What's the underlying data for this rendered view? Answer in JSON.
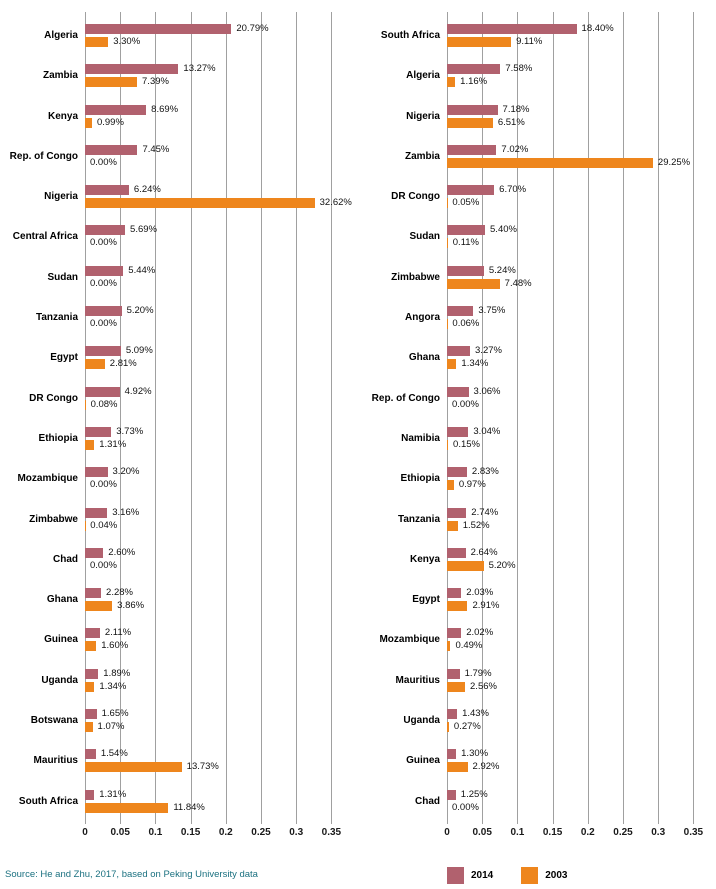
{
  "source_note": "Source: He and Zhu, 2017, based on Peking University data",
  "colors": {
    "series_2014": "#b1616e",
    "series_2003": "#ee861d",
    "gridline": "#a0a0a0",
    "source_text": "#1b7180"
  },
  "legend": {
    "items": [
      {
        "label": "2014",
        "color_key": "series_2014"
      },
      {
        "label": "2003",
        "color_key": "series_2003"
      }
    ]
  },
  "chart_data": [
    {
      "type": "bar",
      "orientation": "horizontal",
      "title": "",
      "xlabel": "",
      "ylabel": "",
      "xlim": [
        0,
        0.35
      ],
      "x_ticks": [
        "0",
        "0.05",
        "0.1",
        "0.15",
        "0.2",
        "0.25",
        "0.3",
        "0.35"
      ],
      "grid": true,
      "values_unit": "percent",
      "categories": [
        "Algeria",
        "Zambia",
        "Kenya",
        "Rep. of Congo",
        "Nigeria",
        "Central Africa",
        "Sudan",
        "Tanzania",
        "Egypt",
        "DR Congo",
        "Ethiopia",
        "Mozambique",
        "Zimbabwe",
        "Chad",
        "Ghana",
        "Guinea",
        "Uganda",
        "Botswana",
        "Mauritius",
        "South Africa"
      ],
      "series": [
        {
          "name": "2014",
          "values": [
            20.79,
            13.27,
            8.69,
            7.45,
            6.24,
            5.69,
            5.44,
            5.2,
            5.09,
            4.92,
            3.73,
            3.2,
            3.16,
            2.6,
            2.28,
            2.11,
            1.89,
            1.65,
            1.54,
            1.31
          ],
          "labels": [
            "20.79%",
            "13.27%",
            "8.69%",
            "7.45%",
            "6.24%",
            "5.69%",
            "5.44%",
            "5.20%",
            "5.09%",
            "4.92%",
            "3.73%",
            "3.20%",
            "3.16%",
            "2.60%",
            "2.28%",
            "2.11%",
            "1.89%",
            "1.65%",
            "1.54%",
            "1.31%"
          ]
        },
        {
          "name": "2003",
          "values": [
            3.3,
            7.39,
            0.99,
            0.0,
            32.62,
            0.0,
            0.0,
            0.0,
            2.81,
            0.08,
            1.31,
            0.0,
            0.04,
            0.0,
            3.86,
            1.6,
            1.34,
            1.07,
            13.73,
            11.84
          ],
          "labels": [
            "3.30%",
            "7.39%",
            "0.99%",
            "0.00%",
            "32.62%",
            "0.00%",
            "0.00%",
            "0.00%",
            "2.81%",
            "0.08%",
            "1.31%",
            "0.00%",
            "0.04%",
            "0.00%",
            "3.86%",
            "1.60%",
            "1.34%",
            "1.07%",
            "13.73%",
            "11.84%"
          ]
        }
      ]
    },
    {
      "type": "bar",
      "orientation": "horizontal",
      "title": "",
      "xlabel": "",
      "ylabel": "",
      "xlim": [
        0,
        0.35
      ],
      "x_ticks": [
        "0",
        "0.05",
        "0.1",
        "0.15",
        "0.2",
        "0.25",
        "0.3",
        "0.35"
      ],
      "grid": true,
      "values_unit": "percent",
      "categories": [
        "South Africa",
        "Algeria",
        "Nigeria",
        "Zambia",
        "DR Congo",
        "Sudan",
        "Zimbabwe",
        "Angora",
        "Ghana",
        "Rep. of Congo",
        "Namibia",
        "Ethiopia",
        "Tanzania",
        "Kenya",
        "Egypt",
        "Mozambique",
        "Mauritius",
        "Uganda",
        "Guinea",
        "Chad"
      ],
      "series": [
        {
          "name": "2014",
          "values": [
            18.4,
            7.58,
            7.18,
            7.02,
            6.7,
            5.4,
            5.24,
            3.75,
            3.27,
            3.06,
            3.04,
            2.83,
            2.74,
            2.64,
            2.03,
            2.02,
            1.79,
            1.43,
            1.3,
            1.25
          ],
          "labels": [
            "18.40%",
            "7.58%",
            "7.18%",
            "7.02%",
            "6.70%",
            "5.40%",
            "5.24%",
            "3.75%",
            "3.27%",
            "3.06%",
            "3.04%",
            "2.83%",
            "2.74%",
            "2.64%",
            "2.03%",
            "2.02%",
            "1.79%",
            "1.43%",
            "1.30%",
            "1.25%"
          ]
        },
        {
          "name": "2003",
          "values": [
            9.11,
            1.16,
            6.51,
            29.25,
            0.05,
            0.11,
            7.48,
            0.06,
            1.34,
            0.0,
            0.15,
            0.97,
            1.52,
            5.2,
            2.91,
            0.49,
            2.56,
            0.27,
            2.92,
            0.0
          ],
          "labels": [
            "9.11%",
            "1.16%",
            "6.51%",
            "29.25%",
            "0.05%",
            "0.11%",
            "7.48%",
            "0.06%",
            "1.34%",
            "0.00%",
            "0.15%",
            "0.97%",
            "1.52%",
            "5.20%",
            "2.91%",
            "0.49%",
            "2.56%",
            "0.27%",
            "2.92%",
            "0.00%"
          ]
        }
      ]
    }
  ]
}
